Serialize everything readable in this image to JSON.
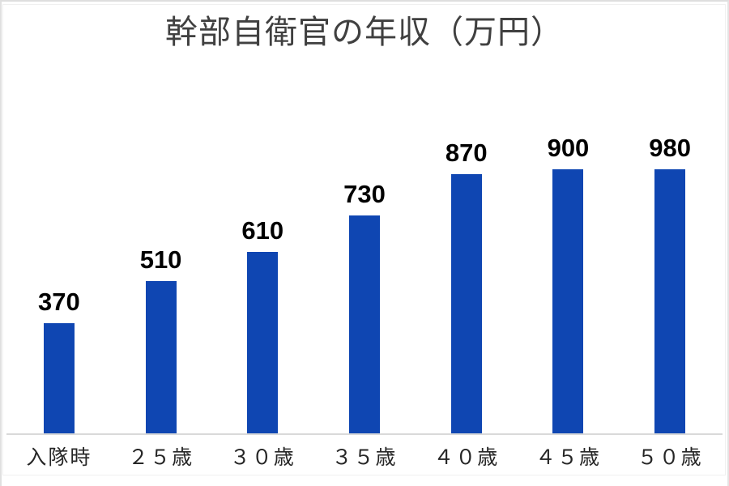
{
  "chart_data": {
    "type": "bar",
    "title": "幹部自衛官の年収（万円）",
    "categories": [
      "入隊時",
      "２５歳",
      "３０歳",
      "３５歳",
      "４０歳",
      "４５歳",
      "５０歳"
    ],
    "values": [
      370,
      510,
      610,
      730,
      870,
      900,
      980
    ],
    "data_labels": [
      "370",
      "510",
      "610",
      "730",
      "870",
      "900",
      "980"
    ],
    "xlabel": "",
    "ylabel": "",
    "ylim": [
      0,
      1000
    ],
    "grid": false,
    "legend": "none",
    "colors": {
      "bar": "#0f46b2",
      "title": "#404040",
      "value_label": "#000000",
      "category_label": "#262626",
      "axis_line": "#d9d9d9",
      "background": "#ffffff"
    }
  }
}
